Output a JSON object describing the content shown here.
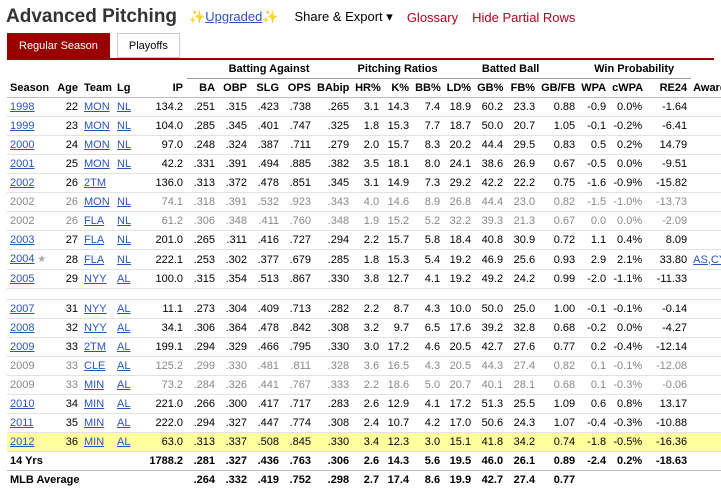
{
  "header": {
    "title": "Advanced Pitching",
    "upgraded_label": "Upgraded",
    "sparkle": "✨",
    "share_label": "Share & Export ▾",
    "glossary_label": "Glossary",
    "hide_partial_label": "Hide Partial Rows"
  },
  "tabs": [
    {
      "label": "Regular Season",
      "active": true
    },
    {
      "label": "Playoffs",
      "active": false
    }
  ],
  "table": {
    "groups": {
      "batting": "Batting Against",
      "ratios": "Pitching Ratios",
      "batted": "Batted Ball",
      "winprob": "Win Probability"
    },
    "columns": [
      "Season",
      "Age",
      "Team",
      "Lg",
      "IP",
      "BA",
      "OBP",
      "SLG",
      "OPS",
      "BAbip",
      "HR%",
      "K%",
      "BB%",
      "LD%",
      "GB%",
      "FB%",
      "GB/FB",
      "WPA",
      "cWPA",
      "RE24",
      "Awards"
    ],
    "rows": [
      {
        "cells": [
          "1998",
          "22",
          "MON",
          "NL",
          "134.2",
          ".251",
          ".315",
          ".423",
          ".738",
          ".265",
          "3.1",
          "14.3",
          "7.4",
          "18.9",
          "60.2",
          "23.3",
          "0.88",
          "-0.9",
          "0.0%",
          "-1.64",
          ""
        ],
        "partial": false
      },
      {
        "cells": [
          "1999",
          "23",
          "MON",
          "NL",
          "104.0",
          ".285",
          ".345",
          ".401",
          ".747",
          ".325",
          "1.8",
          "15.3",
          "7.7",
          "18.7",
          "50.0",
          "20.7",
          "1.05",
          "-0.1",
          "-0.2%",
          "-6.41",
          ""
        ],
        "partial": false
      },
      {
        "cells": [
          "2000",
          "24",
          "MON",
          "NL",
          "97.0",
          ".248",
          ".324",
          ".387",
          ".711",
          ".279",
          "2.0",
          "15.7",
          "8.3",
          "20.2",
          "44.4",
          "29.5",
          "0.83",
          "0.5",
          "0.2%",
          "14.79",
          ""
        ],
        "partial": false
      },
      {
        "cells": [
          "2001",
          "25",
          "MON",
          "NL",
          "42.2",
          ".331",
          ".391",
          ".494",
          ".885",
          ".382",
          "3.5",
          "18.1",
          "8.0",
          "24.1",
          "38.6",
          "26.9",
          "0.67",
          "-0.5",
          "0.0%",
          "-9.51",
          ""
        ],
        "partial": false
      },
      {
        "cells": [
          "2002",
          "26",
          "2TM",
          "",
          "136.0",
          ".313",
          ".372",
          ".478",
          ".851",
          ".345",
          "3.1",
          "14.9",
          "7.3",
          "29.2",
          "42.2",
          "22.2",
          "0.75",
          "-1.6",
          "-0.9%",
          "-15.82",
          ""
        ],
        "partial": false
      },
      {
        "cells": [
          "2002",
          "26",
          "MON",
          "NL",
          "74.1",
          ".318",
          ".391",
          ".532",
          ".923",
          ".343",
          "4.0",
          "14.6",
          "8.9",
          "26.8",
          "44.4",
          "23.0",
          "0.82",
          "-1.5",
          "-1.0%",
          "-13.73",
          ""
        ],
        "partial": true
      },
      {
        "cells": [
          "2002",
          "26",
          "FLA",
          "NL",
          "61.2",
          ".306",
          ".348",
          ".411",
          ".760",
          ".348",
          "1.9",
          "15.2",
          "5.2",
          "32.2",
          "39.3",
          "21.3",
          "0.67",
          "0.0",
          "0.0%",
          "-2.09",
          ""
        ],
        "partial": true
      },
      {
        "cells": [
          "2003",
          "27",
          "FLA",
          "NL",
          "201.0",
          ".265",
          ".311",
          ".416",
          ".727",
          ".294",
          "2.2",
          "15.7",
          "5.8",
          "18.4",
          "40.8",
          "30.9",
          "0.72",
          "1.1",
          "0.4%",
          "8.09",
          ""
        ],
        "partial": false
      },
      {
        "cells": [
          "2004",
          "28",
          "FLA",
          "NL",
          "222.1",
          ".253",
          ".302",
          ".377",
          ".679",
          ".285",
          "1.8",
          "15.3",
          "5.4",
          "19.2",
          "46.9",
          "25.6",
          "0.93",
          "2.9",
          "2.1%",
          "33.80",
          "AS,CYA-6"
        ],
        "partial": false,
        "star": true
      },
      {
        "cells": [
          "2005",
          "29",
          "NYY",
          "AL",
          "100.0",
          ".315",
          ".354",
          ".513",
          ".867",
          ".330",
          "3.8",
          "12.7",
          "4.1",
          "19.2",
          "49.2",
          "24.2",
          "0.99",
          "-2.0",
          "-1.1%",
          "-11.33",
          ""
        ],
        "partial": false
      },
      {
        "cells": [
          "2007",
          "31",
          "NYY",
          "AL",
          "11.1",
          ".273",
          ".304",
          ".409",
          ".713",
          ".282",
          "2.2",
          "8.7",
          "4.3",
          "10.0",
          "50.0",
          "25.0",
          "1.00",
          "-0.1",
          "-0.1%",
          "-0.14",
          ""
        ],
        "partial": false,
        "gap": true
      },
      {
        "cells": [
          "2008",
          "32",
          "NYY",
          "AL",
          "34.1",
          ".306",
          ".364",
          ".478",
          ".842",
          ".308",
          "3.2",
          "9.7",
          "6.5",
          "17.6",
          "39.2",
          "32.8",
          "0.68",
          "-0.2",
          "0.0%",
          "-4.27",
          ""
        ],
        "partial": false
      },
      {
        "cells": [
          "2009",
          "33",
          "2TM",
          "AL",
          "199.1",
          ".294",
          ".329",
          ".466",
          ".795",
          ".330",
          "3.0",
          "17.2",
          "4.6",
          "20.5",
          "42.7",
          "27.6",
          "0.77",
          "0.2",
          "-0.4%",
          "-12.14",
          ""
        ],
        "partial": false
      },
      {
        "cells": [
          "2009",
          "33",
          "CLE",
          "AL",
          "125.2",
          ".299",
          ".330",
          ".481",
          ".811",
          ".328",
          "3.6",
          "16.5",
          "4.3",
          "20.5",
          "44.3",
          "27.4",
          "0.82",
          "0.1",
          "-0.1%",
          "-12.08",
          ""
        ],
        "partial": true
      },
      {
        "cells": [
          "2009",
          "33",
          "MIN",
          "AL",
          "73.2",
          ".284",
          ".326",
          ".441",
          ".767",
          ".333",
          "2.2",
          "18.6",
          "5.0",
          "20.7",
          "40.1",
          "28.1",
          "0.68",
          "0.1",
          "-0.3%",
          "-0.06",
          ""
        ],
        "partial": true
      },
      {
        "cells": [
          "2010",
          "34",
          "MIN",
          "AL",
          "221.0",
          ".266",
          ".300",
          ".417",
          ".717",
          ".283",
          "2.6",
          "12.9",
          "4.1",
          "17.2",
          "51.3",
          "25.5",
          "1.09",
          "0.6",
          "0.8%",
          "13.17",
          ""
        ],
        "partial": false
      },
      {
        "cells": [
          "2011",
          "35",
          "MIN",
          "AL",
          "222.0",
          ".294",
          ".327",
          ".447",
          ".774",
          ".308",
          "2.4",
          "10.7",
          "4.2",
          "17.0",
          "50.6",
          "24.3",
          "1.07",
          "-0.4",
          "-0.3%",
          "-10.88",
          ""
        ],
        "partial": false
      },
      {
        "cells": [
          "2012",
          "36",
          "MIN",
          "AL",
          "63.0",
          ".313",
          ".337",
          ".508",
          ".845",
          ".330",
          "3.4",
          "12.3",
          "3.0",
          "15.1",
          "41.8",
          "34.2",
          "0.74",
          "-1.8",
          "-0.5%",
          "-16.36",
          ""
        ],
        "partial": false,
        "highlight": true
      }
    ],
    "footer": [
      {
        "cells": [
          "14 Yrs",
          "",
          "",
          "",
          "1788.2",
          ".281",
          ".327",
          ".436",
          ".763",
          ".306",
          "2.6",
          "14.3",
          "5.6",
          "19.5",
          "46.0",
          "26.1",
          "0.89",
          "-2.4",
          "0.2%",
          "-18.63",
          ""
        ]
      },
      {
        "cells": [
          "MLB Average",
          "",
          "",
          "",
          "",
          ".264",
          ".332",
          ".419",
          ".752",
          ".298",
          "2.7",
          "17.4",
          "8.6",
          "19.9",
          "42.7",
          "27.4",
          "0.77",
          "",
          "",
          "",
          ""
        ]
      }
    ]
  }
}
